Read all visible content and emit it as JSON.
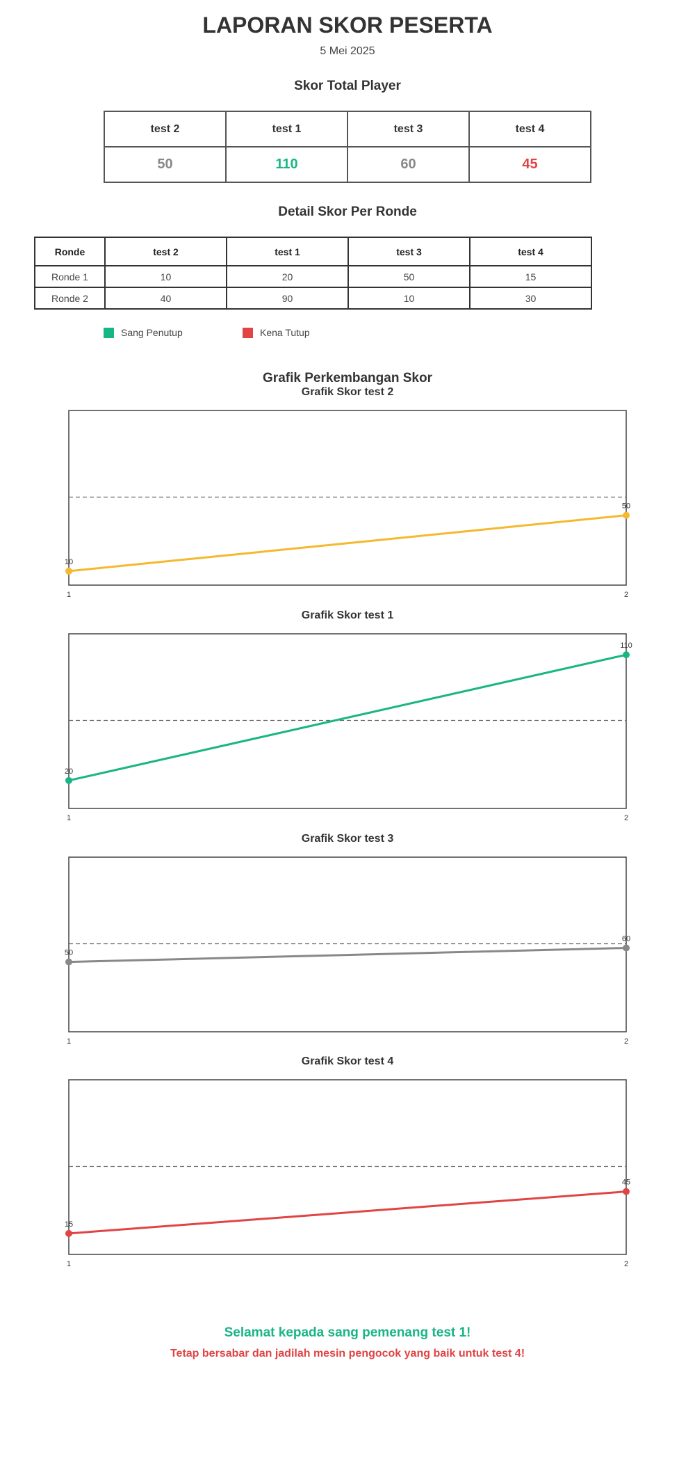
{
  "report": {
    "title": "LAPORAN SKOR PESERTA",
    "date": "5 Mei 2025"
  },
  "total": {
    "heading": "Skor Total Player",
    "players": [
      {
        "name": "test 2",
        "score": "50",
        "color": "#888888"
      },
      {
        "name": "test 1",
        "score": "110",
        "color": "#1ab585"
      },
      {
        "name": "test 3",
        "score": "60",
        "color": "#888888"
      },
      {
        "name": "test 4",
        "score": "45",
        "color": "#e04444"
      }
    ]
  },
  "detail": {
    "heading": "Detail Skor Per Ronde",
    "columns": [
      "Ronde",
      "test 2",
      "test 1",
      "test 3",
      "test 4"
    ],
    "rows": [
      [
        "Ronde 1",
        "10",
        "20",
        "50",
        "15"
      ],
      [
        "Ronde 2",
        "40",
        "90",
        "10",
        "30"
      ]
    ]
  },
  "legend": {
    "items": [
      {
        "label": "Sang Penutup",
        "color": "#1ab585"
      },
      {
        "label": "Kena Tutup",
        "color": "#e04444"
      }
    ]
  },
  "charts_heading": "Grafik Perkembangan Skor",
  "chart_data": [
    {
      "type": "line",
      "title": "Grafik Skor test 2",
      "x": [
        1,
        2
      ],
      "values": [
        10,
        50
      ],
      "color": "#f5b82e",
      "ylim": [
        0,
        125
      ],
      "reference": 63,
      "grid": false
    },
    {
      "type": "line",
      "title": "Grafik Skor test 1",
      "x": [
        1,
        2
      ],
      "values": [
        20,
        110
      ],
      "color": "#1ab585",
      "ylim": [
        0,
        125
      ],
      "reference": 63,
      "grid": false
    },
    {
      "type": "line",
      "title": "Grafik Skor test 3",
      "x": [
        1,
        2
      ],
      "values": [
        50,
        60
      ],
      "color": "#888888",
      "ylim": [
        0,
        125
      ],
      "reference": 63,
      "grid": false
    },
    {
      "type": "line",
      "title": "Grafik Skor test 4",
      "x": [
        1,
        2
      ],
      "values": [
        15,
        45
      ],
      "color": "#e04444",
      "ylim": [
        0,
        125
      ],
      "reference": 63,
      "grid": false
    }
  ],
  "messages": {
    "congrats": "Selamat kepada sang pemenang test 1!",
    "console": "Tetap bersabar dan jadilah mesin pengocok yang baik untuk test 4!"
  }
}
